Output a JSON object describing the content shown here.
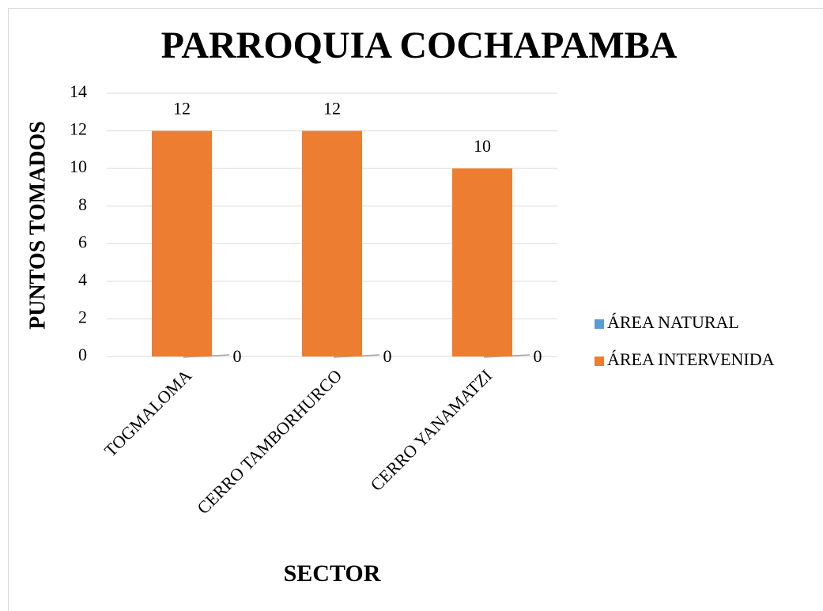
{
  "chart_data": {
    "type": "bar",
    "title": "PARROQUIA COCHAPAMBA",
    "x_label": "SECTOR",
    "y_label": "PUNTOS TOMADOS",
    "categories": [
      "TOGMALOMA",
      "CERRO TAMBORHURCO",
      "CERRO YANAMATZI"
    ],
    "series": [
      {
        "name": "ÁREA NATURAL",
        "color": "#5b9bd5",
        "values": [
          0,
          0,
          0
        ]
      },
      {
        "name": "ÁREA INTERVENIDA",
        "color": "#ed7d31",
        "values": [
          12,
          12,
          10
        ]
      }
    ],
    "ylim": [
      0,
      14
    ],
    "yticks": [
      0,
      2,
      4,
      6,
      8,
      10,
      12,
      14
    ],
    "grid": true,
    "legend": "right"
  }
}
